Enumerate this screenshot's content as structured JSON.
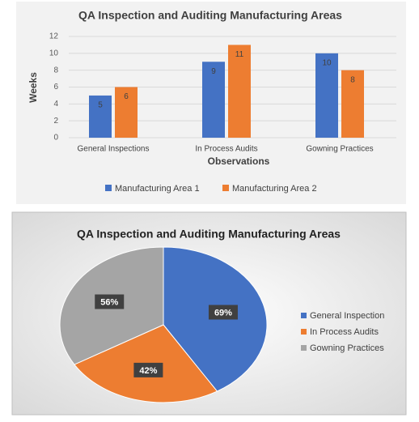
{
  "chart_data": [
    {
      "type": "bar",
      "title": "QA Inspection and Auditing Manufacturing Areas",
      "y_label": "Weeks",
      "x_label": "Observations",
      "categories": [
        "General Inspections",
        "In Process Audits",
        "Gowning Practices"
      ],
      "series": [
        {
          "name": "Manufacturing Area 1",
          "color": "#4472c4",
          "values": [
            5,
            9,
            10
          ]
        },
        {
          "name": "Manufacturing Area 2",
          "color": "#ed7d31",
          "values": [
            6,
            11,
            8
          ]
        }
      ],
      "ylim": [
        0,
        12
      ],
      "yticks": [
        0,
        2,
        4,
        6,
        8,
        10,
        12
      ],
      "legend": "bottom"
    },
    {
      "type": "pie",
      "title": "QA Inspection and Auditing Manufacturing Areas",
      "categories": [
        "General Inspection",
        "In Process Audits",
        "Gowning Practices"
      ],
      "values": [
        69,
        42,
        56
      ],
      "value_labels": [
        "69%",
        "42%",
        "56%"
      ],
      "colors": [
        "#4472c4",
        "#ed7d31",
        "#a5a5a5"
      ],
      "legend": "right"
    }
  ]
}
